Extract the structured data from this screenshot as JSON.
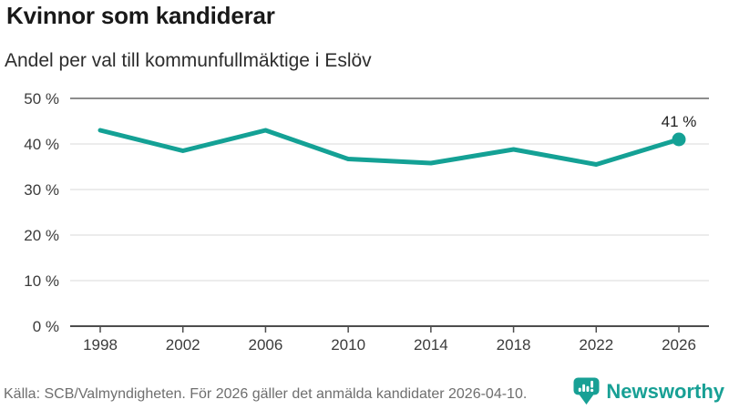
{
  "header": {
    "title": "Kvinnor som kandiderar",
    "subtitle": "Andel per val till kommunfullmäktige i Eslöv"
  },
  "chart_data": {
    "type": "line",
    "title": "Kvinnor som kandiderar",
    "subtitle": "Andel per val till kommunfullmäktige i Eslöv",
    "x": [
      1998,
      2002,
      2006,
      2010,
      2014,
      2018,
      2022,
      2026
    ],
    "values": [
      43,
      38.5,
      43,
      36.7,
      35.8,
      38.8,
      35.5,
      41
    ],
    "end_label": "41 %",
    "xlabel": "",
    "ylabel": "",
    "ylim": [
      0,
      50
    ],
    "y_ticks": [
      0,
      10,
      20,
      30,
      40,
      50
    ],
    "y_tick_suffix": " %",
    "grid": true,
    "legend": "none",
    "line_color": "#14a195",
    "marker": "last-point-only"
  },
  "footer": {
    "source": "Källa: SCB/Valmyndigheten. För 2026 gäller det anmälda kandidater 2026-04-10.",
    "brand": "Newsworthy",
    "brand_color": "#18a095"
  },
  "icons": {
    "logo": "newsworthy-speech-bubble-bar-chart"
  }
}
